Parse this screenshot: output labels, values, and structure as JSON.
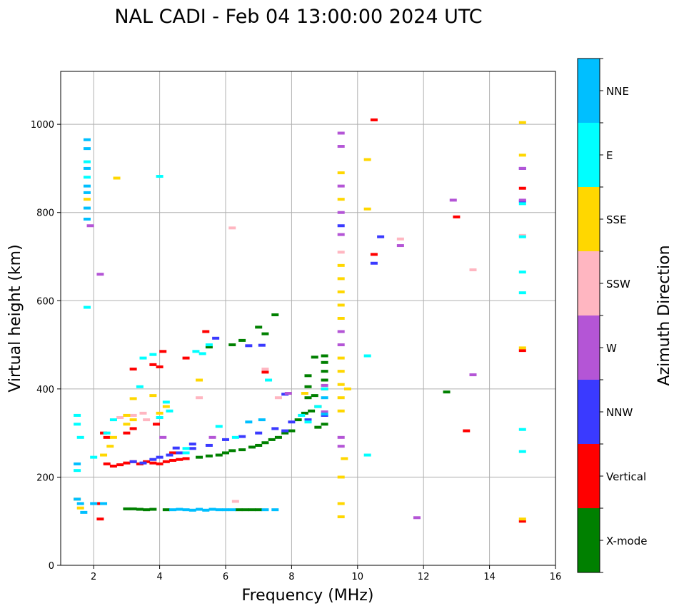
{
  "chart_data": {
    "type": "scatter",
    "title": "NAL CADI - Feb 04 13:00:00 2024 UTC",
    "xlabel": "Frequency (MHz)",
    "ylabel": "Virtual height (km)",
    "xlim": [
      1,
      16
    ],
    "ylim": [
      0,
      1120
    ],
    "xticks": [
      2,
      4,
      6,
      8,
      10,
      12,
      14,
      16
    ],
    "yticks": [
      0,
      200,
      400,
      600,
      800,
      1000
    ],
    "grid": true,
    "colorbar": {
      "label": "Azimuth Direction",
      "categories": [
        "X-mode",
        "Vertical",
        "NNW",
        "W",
        "SSW",
        "SSE",
        "E",
        "NNE"
      ],
      "colors": [
        "#008000",
        "#ff0000",
        "#3a3aff",
        "#b455d6",
        "#ffb6c1",
        "#ffd700",
        "#00ffff",
        "#00bfff"
      ]
    },
    "series": [
      {
        "name": "X-mode",
        "points": [
          [
            3.0,
            128
          ],
          [
            3.2,
            128
          ],
          [
            3.4,
            127
          ],
          [
            3.6,
            126
          ],
          [
            3.8,
            127
          ],
          [
            4.2,
            126
          ],
          [
            6.4,
            126
          ],
          [
            6.6,
            126
          ],
          [
            6.8,
            126
          ],
          [
            7.0,
            126
          ],
          [
            5.2,
            245
          ],
          [
            5.5,
            248
          ],
          [
            5.8,
            250
          ],
          [
            6.0,
            255
          ],
          [
            6.2,
            260
          ],
          [
            6.5,
            262
          ],
          [
            6.8,
            268
          ],
          [
            7.0,
            272
          ],
          [
            7.2,
            278
          ],
          [
            7.4,
            285
          ],
          [
            7.6,
            290
          ],
          [
            7.8,
            300
          ],
          [
            8.0,
            305
          ],
          [
            8.2,
            330
          ],
          [
            8.4,
            345
          ],
          [
            8.6,
            350
          ],
          [
            8.8,
            360
          ],
          [
            8.8,
            313
          ],
          [
            9.0,
            320
          ],
          [
            8.5,
            380
          ],
          [
            8.5,
            405
          ],
          [
            8.5,
            430
          ],
          [
            8.7,
            385
          ],
          [
            9.0,
            400
          ],
          [
            9.0,
            420
          ],
          [
            9.0,
            440
          ],
          [
            9.0,
            460
          ],
          [
            9.0,
            475
          ],
          [
            8.7,
            472
          ],
          [
            6.5,
            510
          ],
          [
            7.0,
            540
          ],
          [
            7.5,
            568
          ],
          [
            6.2,
            500
          ],
          [
            5.5,
            495
          ],
          [
            12.7,
            393
          ],
          [
            7.2,
            525
          ]
        ]
      },
      {
        "name": "Vertical",
        "points": [
          [
            2.4,
            230
          ],
          [
            2.6,
            225
          ],
          [
            2.8,
            228
          ],
          [
            3.0,
            232
          ],
          [
            3.2,
            235
          ],
          [
            3.4,
            230
          ],
          [
            3.6,
            235
          ],
          [
            3.8,
            232
          ],
          [
            4.0,
            230
          ],
          [
            4.2,
            235
          ],
          [
            4.4,
            238
          ],
          [
            4.6,
            240
          ],
          [
            4.8,
            242
          ],
          [
            3.0,
            300
          ],
          [
            3.2,
            310
          ],
          [
            2.3,
            300
          ],
          [
            2.4,
            290
          ],
          [
            2.2,
            105
          ],
          [
            2.2,
            140
          ],
          [
            3.8,
            455
          ],
          [
            4.0,
            450
          ],
          [
            3.2,
            445
          ],
          [
            5.4,
            530
          ],
          [
            4.1,
            485
          ],
          [
            4.8,
            470
          ],
          [
            7.2,
            438
          ],
          [
            10.5,
            1010
          ],
          [
            10.5,
            705
          ],
          [
            13.0,
            790
          ],
          [
            13.3,
            305
          ],
          [
            15.0,
            855
          ],
          [
            15.0,
            487
          ],
          [
            15.0,
            100
          ],
          [
            3.9,
            320
          ],
          [
            4.4,
            255
          ]
        ]
      },
      {
        "name": "NNW",
        "points": [
          [
            3.2,
            235
          ],
          [
            3.5,
            232
          ],
          [
            3.8,
            240
          ],
          [
            4.0,
            245
          ],
          [
            4.3,
            250
          ],
          [
            4.6,
            255
          ],
          [
            5.0,
            265
          ],
          [
            5.5,
            272
          ],
          [
            6.0,
            285
          ],
          [
            6.5,
            292
          ],
          [
            7.0,
            300
          ],
          [
            7.5,
            310
          ],
          [
            8.0,
            325
          ],
          [
            8.5,
            330
          ],
          [
            9.0,
            340
          ],
          [
            7.8,
            305
          ],
          [
            4.5,
            266
          ],
          [
            5.0,
            275
          ],
          [
            10.5,
            685
          ],
          [
            10.7,
            745
          ],
          [
            9.5,
            770
          ],
          [
            15.0,
            900
          ],
          [
            15.0,
            826
          ],
          [
            6.7,
            498
          ],
          [
            7.1,
            499
          ],
          [
            7.8,
            388
          ],
          [
            5.7,
            515
          ]
        ]
      },
      {
        "name": "W",
        "points": [
          [
            2.2,
            660
          ],
          [
            9.5,
            980
          ],
          [
            9.5,
            950
          ],
          [
            9.5,
            860
          ],
          [
            9.5,
            800
          ],
          [
            9.5,
            750
          ],
          [
            9.5,
            530
          ],
          [
            9.5,
            500
          ],
          [
            9.5,
            290
          ],
          [
            9.5,
            270
          ],
          [
            11.3,
            725
          ],
          [
            12.9,
            828
          ],
          [
            13.5,
            432
          ],
          [
            11.8,
            108
          ],
          [
            15.0,
            828
          ],
          [
            15.0,
            900
          ],
          [
            9.0,
            348
          ],
          [
            9.0,
            408
          ],
          [
            7.9,
            390
          ],
          [
            4.1,
            290
          ],
          [
            5.6,
            290
          ],
          [
            1.9,
            770
          ]
        ]
      },
      {
        "name": "SSW",
        "points": [
          [
            6.2,
            765
          ],
          [
            11.3,
            740
          ],
          [
            13.5,
            670
          ],
          [
            15.0,
            748
          ],
          [
            9.5,
            710
          ],
          [
            3.5,
            345
          ],
          [
            3.6,
            330
          ],
          [
            3.2,
            340
          ],
          [
            2.8,
            335
          ],
          [
            7.2,
            445
          ],
          [
            6.3,
            145
          ],
          [
            7.6,
            380
          ],
          [
            5.2,
            380
          ]
        ]
      },
      {
        "name": "SSE",
        "points": [
          [
            2.7,
            878
          ],
          [
            1.8,
            830
          ],
          [
            10.3,
            920
          ],
          [
            10.3,
            808
          ],
          [
            9.5,
            890
          ],
          [
            9.5,
            830
          ],
          [
            9.5,
            680
          ],
          [
            9.5,
            650
          ],
          [
            9.5,
            620
          ],
          [
            9.5,
            590
          ],
          [
            9.5,
            560
          ],
          [
            9.5,
            470
          ],
          [
            9.5,
            440
          ],
          [
            9.5,
            410
          ],
          [
            9.5,
            380
          ],
          [
            9.5,
            350
          ],
          [
            9.5,
            200
          ],
          [
            9.5,
            140
          ],
          [
            9.5,
            110
          ],
          [
            9.7,
            400
          ],
          [
            9.6,
            242
          ],
          [
            15.0,
            1004
          ],
          [
            15.0,
            930
          ],
          [
            15.0,
            493
          ],
          [
            15.0,
            105
          ],
          [
            3.0,
            340
          ],
          [
            3.2,
            330
          ],
          [
            3.0,
            320
          ],
          [
            2.5,
            270
          ],
          [
            2.3,
            250
          ],
          [
            1.5,
            150
          ],
          [
            1.6,
            130
          ],
          [
            3.8,
            385
          ],
          [
            4.2,
            360
          ],
          [
            4.0,
            345
          ],
          [
            5.2,
            420
          ],
          [
            8.4,
            390
          ],
          [
            3.2,
            378
          ],
          [
            2.6,
            290
          ]
        ]
      },
      {
        "name": "E",
        "points": [
          [
            1.5,
            215
          ],
          [
            1.5,
            340
          ],
          [
            1.5,
            320
          ],
          [
            1.6,
            290
          ],
          [
            1.8,
            585
          ],
          [
            1.8,
            880
          ],
          [
            1.8,
            915
          ],
          [
            4.0,
            882
          ],
          [
            3.5,
            470
          ],
          [
            3.8,
            478
          ],
          [
            4.2,
            370
          ],
          [
            4.3,
            350
          ],
          [
            4.0,
            335
          ],
          [
            2.6,
            330
          ],
          [
            2.4,
            300
          ],
          [
            2.0,
            245
          ],
          [
            5.1,
            485
          ],
          [
            5.5,
            500
          ],
          [
            5.3,
            480
          ],
          [
            5.8,
            315
          ],
          [
            4.8,
            255
          ],
          [
            6.3,
            290
          ],
          [
            7.3,
            420
          ],
          [
            8.3,
            340
          ],
          [
            8.5,
            325
          ],
          [
            8.8,
            360
          ],
          [
            9.0,
            400
          ],
          [
            10.3,
            475
          ],
          [
            10.3,
            250
          ],
          [
            15.0,
            665
          ],
          [
            15.0,
            618
          ],
          [
            15.0,
            308
          ],
          [
            15.0,
            258
          ],
          [
            15.0,
            820
          ],
          [
            15.0,
            745
          ],
          [
            4.8,
            265
          ],
          [
            3.4,
            405
          ]
        ]
      },
      {
        "name": "NNE",
        "points": [
          [
            1.8,
            965
          ],
          [
            1.8,
            945
          ],
          [
            1.8,
            900
          ],
          [
            1.8,
            860
          ],
          [
            1.8,
            845
          ],
          [
            1.8,
            810
          ],
          [
            1.8,
            785
          ],
          [
            1.5,
            230
          ],
          [
            1.5,
            150
          ],
          [
            1.6,
            140
          ],
          [
            1.7,
            120
          ],
          [
            2.0,
            140
          ],
          [
            2.3,
            140
          ],
          [
            4.4,
            126
          ],
          [
            4.6,
            127
          ],
          [
            4.8,
            126
          ],
          [
            5.0,
            125
          ],
          [
            5.2,
            127
          ],
          [
            5.4,
            125
          ],
          [
            5.6,
            127
          ],
          [
            5.8,
            126
          ],
          [
            6.0,
            126
          ],
          [
            6.2,
            126
          ],
          [
            7.2,
            126
          ],
          [
            7.5,
            126
          ],
          [
            6.7,
            325
          ],
          [
            7.1,
            330
          ],
          [
            9.0,
            343
          ],
          [
            9.0,
            380
          ]
        ]
      }
    ]
  }
}
